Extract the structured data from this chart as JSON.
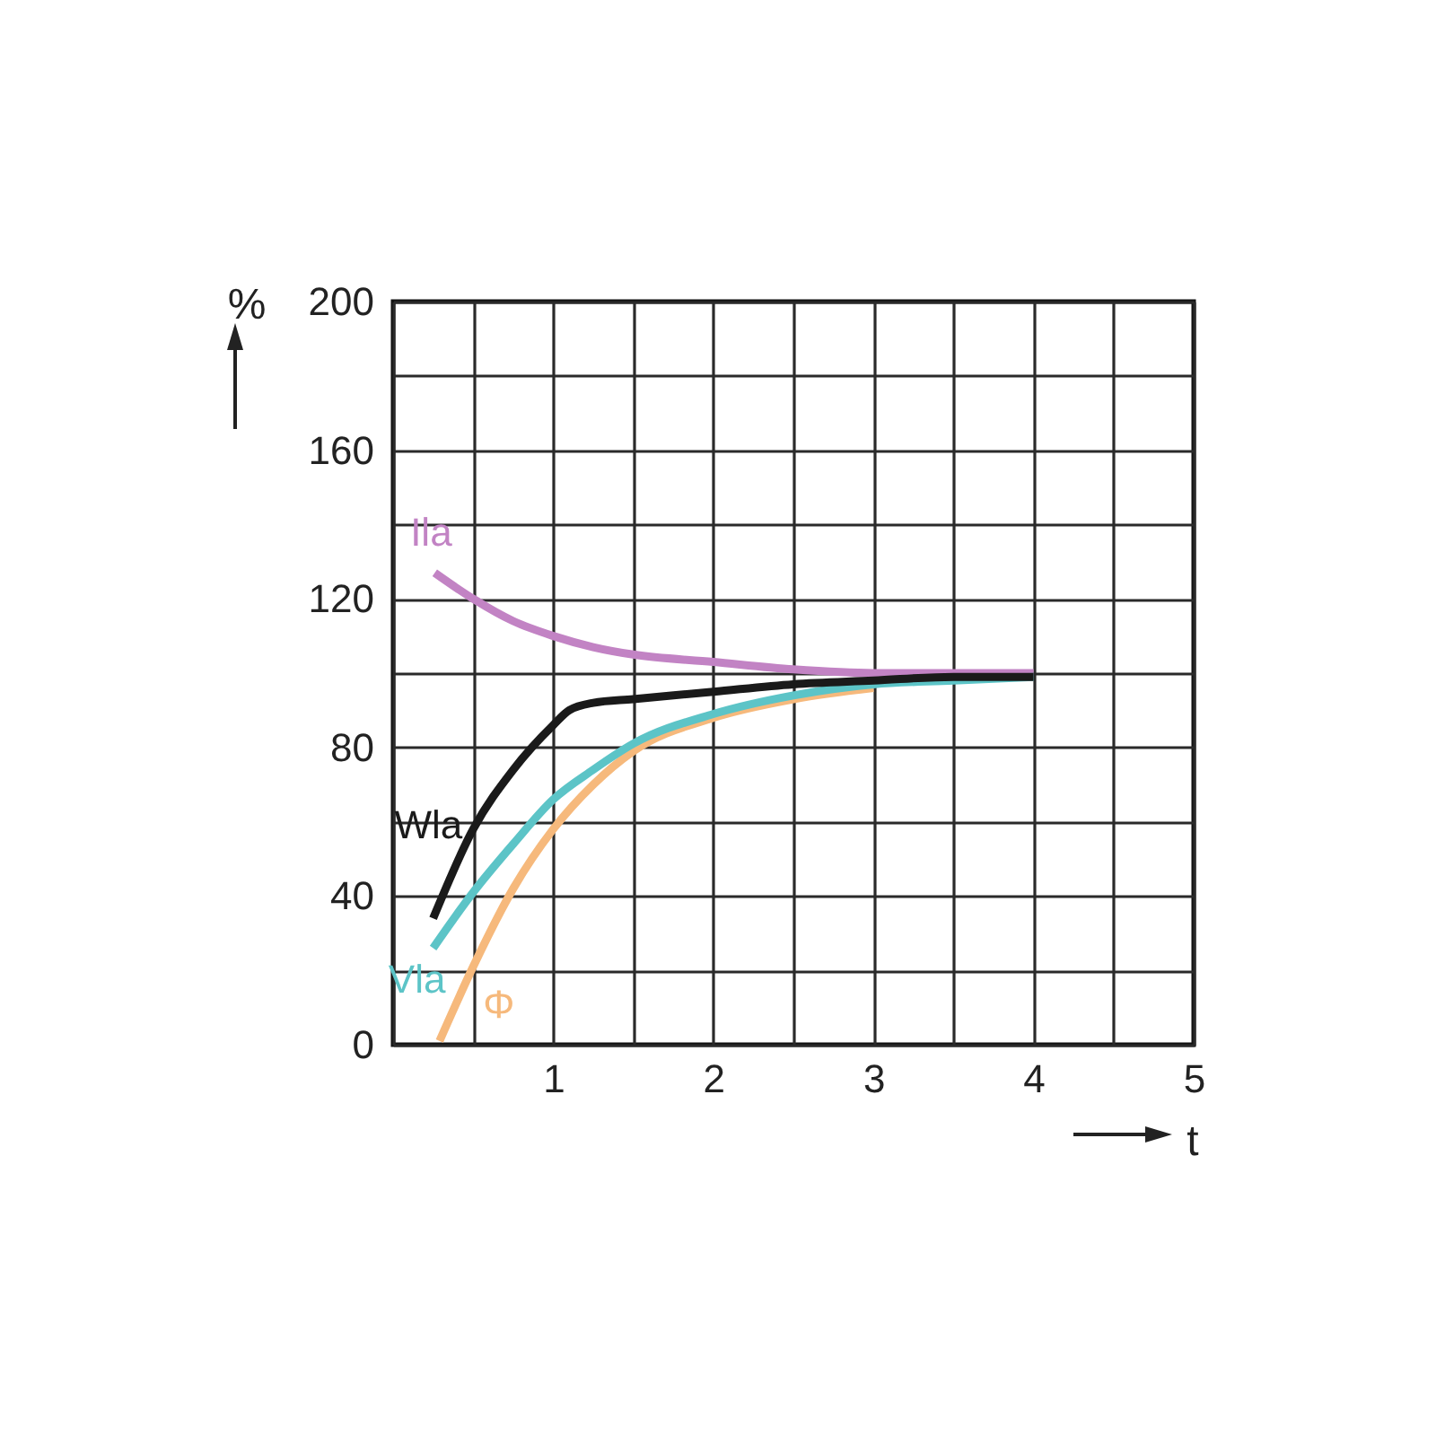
{
  "chart_data": {
    "type": "line",
    "xlabel": "t",
    "ylabel": "%",
    "xlim": [
      0,
      5
    ],
    "xticks": [
      {
        "value": 0,
        "label": null
      },
      {
        "value": 0.5,
        "label": null
      },
      1,
      {
        "value": 1.5,
        "label": null
      },
      2,
      {
        "value": 2.5,
        "label": null
      },
      3,
      {
        "value": 3.5,
        "label": null
      },
      4,
      {
        "value": 4.5,
        "label": null
      },
      5
    ],
    "ylim": [
      0,
      200
    ],
    "yticks": [
      0,
      {
        "value": 20,
        "label": null
      },
      40,
      {
        "value": 60,
        "label": null
      },
      80,
      {
        "value": 100,
        "label": null
      },
      120,
      {
        "value": 140,
        "label": null
      },
      160,
      {
        "value": 180,
        "label": null
      },
      200
    ],
    "grid": true,
    "marker": "none",
    "line_style": "solid",
    "series": [
      {
        "name": "Ila",
        "color": "#c283c4",
        "x": [
          0.26,
          0.5,
          0.75,
          1,
          1.25,
          1.5,
          2,
          2.5,
          3,
          3.5,
          4
        ],
        "values": [
          127,
          120,
          114,
          110,
          107,
          105,
          103,
          101,
          100,
          100,
          100
        ]
      },
      {
        "name": "Φ",
        "color": "#f6b97c",
        "x": [
          0.29,
          0.5,
          0.75,
          1,
          1.25,
          1.5,
          2,
          2.5,
          3
        ],
        "values": [
          1,
          21,
          42,
          58,
          70,
          79,
          88,
          93,
          96
        ]
      },
      {
        "name": "Vla",
        "color": "#5cc4c7",
        "x": [
          0.25,
          0.5,
          0.75,
          1,
          1.25,
          1.5,
          2,
          2.5,
          3,
          3.5,
          4
        ],
        "values": [
          26,
          41,
          54,
          66,
          74,
          81,
          89,
          94,
          97,
          98,
          99
        ]
      },
      {
        "name": "Wla",
        "color": "#1a1a1a",
        "x": [
          0.25,
          0.5,
          0.75,
          1,
          1.1,
          1.25,
          1.5,
          2,
          2.5,
          3,
          3.5,
          4
        ],
        "values": [
          34,
          58,
          74,
          86,
          90,
          92,
          93,
          95,
          97,
          98,
          99,
          99
        ]
      }
    ]
  }
}
